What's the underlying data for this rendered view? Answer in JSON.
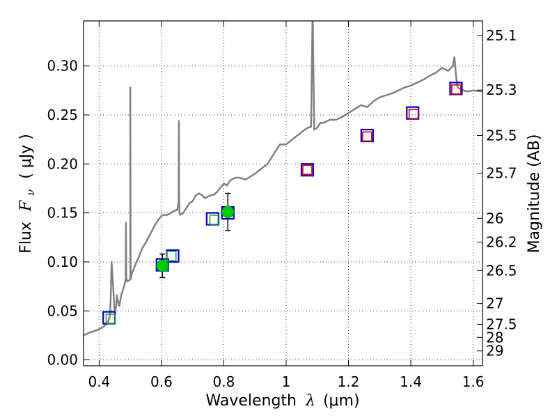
{
  "chart_data": {
    "type": "line",
    "xlabel": "Wavelength",
    "xlabel_symbol": "λ",
    "xlabel_unit": "(μm)",
    "ylabel": "Flux",
    "ylabel_symbol": "F",
    "ylabel_subscript": "ν",
    "ylabel_unit": "( μJy )",
    "y2label": "Magnitude (AB)",
    "xlim": [
      0.35,
      1.63
    ],
    "ylim": [
      -0.006,
      0.346
    ],
    "grid": true,
    "x_ticks": [
      0.4,
      0.6,
      0.8,
      1.0,
      1.2,
      1.4,
      1.6
    ],
    "x_tick_labels": [
      "0.4",
      "0.6",
      "0.8",
      "1",
      "1.2",
      "1.4",
      "1.6"
    ],
    "y_ticks": [
      0.0,
      0.05,
      0.1,
      0.15,
      0.2,
      0.25,
      0.3
    ],
    "y_tick_labels": [
      "0.00",
      "0.05",
      "0.10",
      "0.15",
      "0.20",
      "0.25",
      "0.30"
    ],
    "y2_ticks": [
      {
        "label": "25.1",
        "value": 25.1
      },
      {
        "label": "25.3",
        "value": 25.3
      },
      {
        "label": "25.5",
        "value": 25.5
      },
      {
        "label": "25.7",
        "value": 25.7
      },
      {
        "label": "26",
        "value": 26.0
      },
      {
        "label": "26.2",
        "value": 26.2
      },
      {
        "label": "26.5",
        "value": 26.5
      },
      {
        "label": "27",
        "value": 27.0
      },
      {
        "label": "27.5",
        "value": 27.5
      },
      {
        "label": "28",
        "value": 28.0
      },
      {
        "label": "29",
        "value": 29.0
      }
    ],
    "series": [
      {
        "name": "model-spectrum",
        "kind": "line",
        "color": "#808080",
        "x": [
          0.35,
          0.37,
          0.39,
          0.41,
          0.425,
          0.43,
          0.435,
          0.437,
          0.44,
          0.45,
          0.455,
          0.457,
          0.46,
          0.465,
          0.47,
          0.48,
          0.485,
          0.486,
          0.487,
          0.49,
          0.5,
          0.5,
          0.501,
          0.502,
          0.505,
          0.51,
          0.52,
          0.53,
          0.54,
          0.55,
          0.56,
          0.57,
          0.58,
          0.59,
          0.6,
          0.61,
          0.62,
          0.63,
          0.64,
          0.65,
          0.655,
          0.656,
          0.6565,
          0.657,
          0.658,
          0.66,
          0.665,
          0.67,
          0.68,
          0.69,
          0.7,
          0.71,
          0.72,
          0.73,
          0.74,
          0.75,
          0.76,
          0.77,
          0.78,
          0.79,
          0.8,
          0.81,
          0.82,
          0.83,
          0.84,
          0.85,
          0.86,
          0.87,
          0.88,
          0.89,
          0.9,
          0.92,
          0.94,
          0.96,
          0.98,
          1.0,
          1.02,
          1.04,
          1.06,
          1.07,
          1.08,
          1.085,
          1.09,
          1.095,
          1.1,
          1.11,
          1.12,
          1.14,
          1.16,
          1.18,
          1.2,
          1.22,
          1.24,
          1.26,
          1.28,
          1.3,
          1.32,
          1.34,
          1.36,
          1.38,
          1.4,
          1.42,
          1.44,
          1.46,
          1.48,
          1.5,
          1.52,
          1.535,
          1.54,
          1.545,
          1.55,
          1.56,
          1.58,
          1.6,
          1.63
        ],
        "y": [
          0.025,
          0.028,
          0.03,
          0.033,
          0.037,
          0.04,
          0.046,
          0.062,
          0.1,
          0.048,
          0.055,
          0.066,
          0.06,
          0.055,
          0.065,
          0.075,
          0.082,
          0.14,
          0.084,
          0.08,
          0.082,
          0.278,
          0.09,
          0.083,
          0.088,
          0.092,
          0.1,
          0.107,
          0.115,
          0.12,
          0.126,
          0.132,
          0.138,
          0.143,
          0.147,
          0.148,
          0.148,
          0.15,
          0.152,
          0.153,
          0.16,
          0.244,
          0.17,
          0.16,
          0.15,
          0.148,
          0.149,
          0.15,
          0.155,
          0.16,
          0.162,
          0.168,
          0.17,
          0.168,
          0.165,
          0.167,
          0.168,
          0.169,
          0.172,
          0.176,
          0.18,
          0.178,
          0.183,
          0.185,
          0.186,
          0.186,
          0.185,
          0.184,
          0.186,
          0.188,
          0.19,
          0.195,
          0.2,
          0.21,
          0.22,
          0.22,
          0.225,
          0.23,
          0.235,
          0.237,
          0.238,
          0.36,
          0.235,
          0.236,
          0.237,
          0.242,
          0.242,
          0.245,
          0.245,
          0.248,
          0.252,
          0.256,
          0.26,
          0.258,
          0.264,
          0.268,
          0.27,
          0.272,
          0.275,
          0.278,
          0.28,
          0.283,
          0.286,
          0.29,
          0.293,
          0.298,
          0.295,
          0.3,
          0.309,
          0.29,
          0.278,
          0.276,
          0.274,
          0.275,
          0.274
        ]
      },
      {
        "name": "photometry-open-blue",
        "kind": "square-marker",
        "color": "#0000cc",
        "x": [
          0.432,
          0.603,
          0.636,
          0.764,
          0.813,
          1.068,
          1.26,
          1.406,
          1.545
        ],
        "y": [
          0.043,
          0.097,
          0.106,
          0.144,
          0.15,
          0.194,
          0.229,
          0.252,
          0.277
        ]
      },
      {
        "name": "model-fluxes-green",
        "kind": "square-marker",
        "color": "#22aa22",
        "x": [
          0.437,
          0.606,
          0.632,
          0.77
        ],
        "y": [
          0.042,
          0.096,
          0.106,
          0.143
        ]
      },
      {
        "name": "model-fluxes-red",
        "kind": "square-marker",
        "color": "#dd0000",
        "x": [
          1.068,
          1.26,
          1.409,
          1.546
        ],
        "y": [
          0.194,
          0.228,
          0.251,
          0.276
        ]
      },
      {
        "name": "photometry-filled-green",
        "kind": "filled-circle-errorbar",
        "color": "#00cc00",
        "x": [
          0.603,
          0.813
        ],
        "y": [
          0.096,
          0.151
        ],
        "yerr": [
          0.012,
          0.019
        ]
      }
    ]
  }
}
